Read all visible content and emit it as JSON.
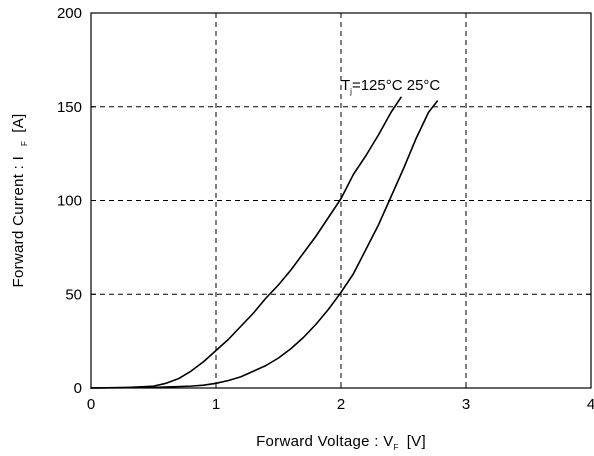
{
  "chart_data": {
    "type": "line",
    "title": "",
    "xlabel": {
      "main": "Forward Voltage  :  V",
      "sub": "F",
      "unit": "[V]"
    },
    "ylabel": {
      "main": "Forward Current  :  I",
      "sub": "F",
      "unit": "[A]"
    },
    "xlim": [
      0,
      4
    ],
    "ylim": [
      0,
      200
    ],
    "xticks": [
      0,
      1,
      2,
      3,
      4
    ],
    "yticks": [
      0,
      50,
      100,
      150,
      200
    ],
    "grid": "dashed",
    "annotation": {
      "prefix": "T",
      "sub": "j",
      "text": "=125°C 25°C"
    },
    "series": [
      {
        "points": [
          [
            0,
            0
          ],
          [
            0.3,
            0.3
          ],
          [
            0.5,
            1
          ],
          [
            0.6,
            2.5
          ],
          [
            0.7,
            5
          ],
          [
            0.8,
            9
          ],
          [
            0.9,
            14
          ],
          [
            1.0,
            20
          ],
          [
            1.1,
            26
          ],
          [
            1.2,
            33
          ],
          [
            1.3,
            40
          ],
          [
            1.4,
            48
          ],
          [
            1.5,
            55
          ],
          [
            1.6,
            63
          ],
          [
            1.7,
            72
          ],
          [
            1.8,
            81
          ],
          [
            1.9,
            91
          ],
          [
            2.0,
            101
          ],
          [
            2.1,
            114
          ],
          [
            2.2,
            124
          ],
          [
            2.3,
            135
          ],
          [
            2.4,
            147
          ],
          [
            2.48,
            155
          ]
        ]
      },
      {
        "points": [
          [
            0,
            0
          ],
          [
            0.5,
            0.3
          ],
          [
            0.8,
            1
          ],
          [
            0.9,
            1.5
          ],
          [
            1.0,
            2.5
          ],
          [
            1.1,
            4
          ],
          [
            1.2,
            6
          ],
          [
            1.3,
            9
          ],
          [
            1.4,
            12
          ],
          [
            1.5,
            16
          ],
          [
            1.6,
            21
          ],
          [
            1.7,
            27
          ],
          [
            1.8,
            34
          ],
          [
            1.9,
            42
          ],
          [
            2.0,
            51
          ],
          [
            2.1,
            61
          ],
          [
            2.2,
            74
          ],
          [
            2.3,
            87
          ],
          [
            2.4,
            102
          ],
          [
            2.5,
            117
          ],
          [
            2.6,
            133
          ],
          [
            2.7,
            147
          ],
          [
            2.77,
            153
          ]
        ]
      }
    ]
  }
}
